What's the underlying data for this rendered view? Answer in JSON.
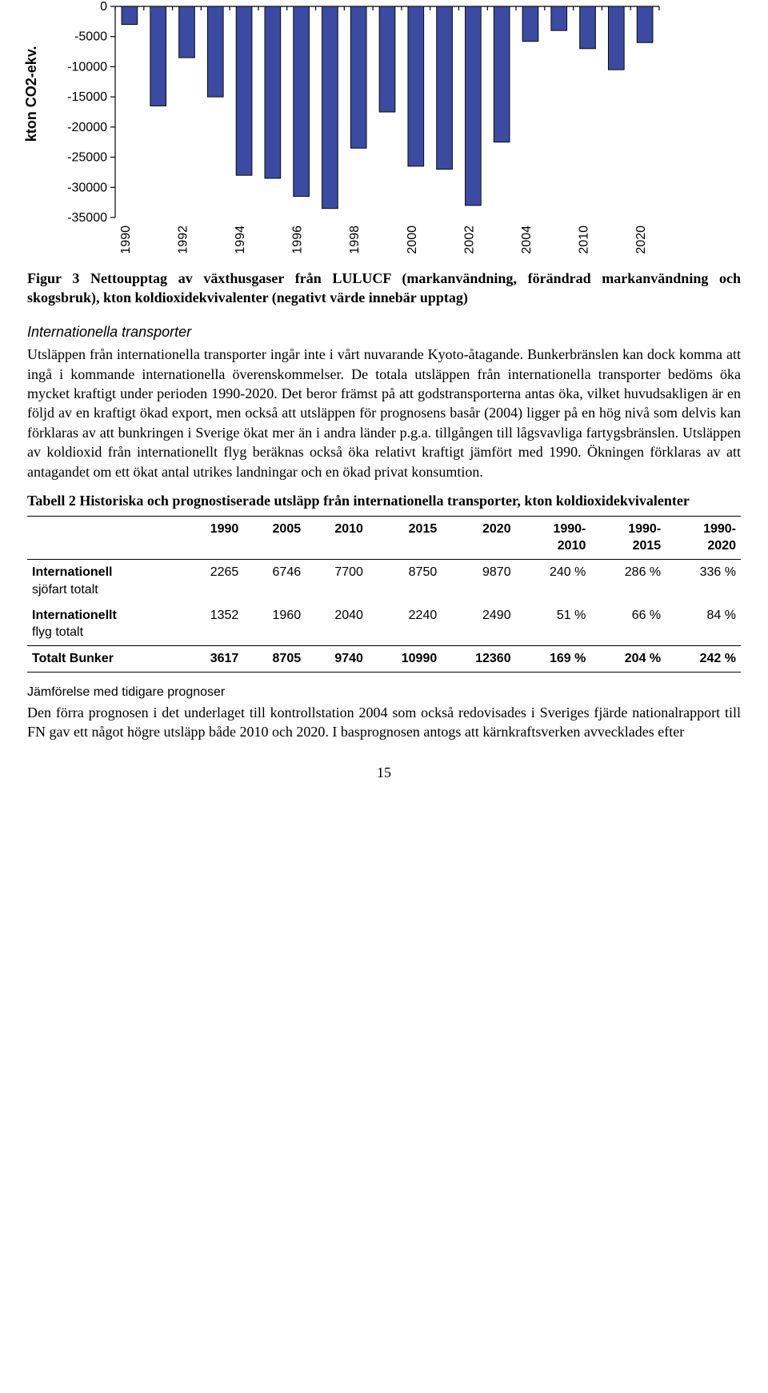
{
  "chart": {
    "type": "bar",
    "ylabel": "kton CO2-ekv.",
    "bar_color": "#3b4ba1",
    "bar_border": "#0b0b0b",
    "background_color": "#ffffff",
    "axis_color": "#000000",
    "yticks": [
      0,
      -5000,
      -10000,
      -15000,
      -20000,
      -25000,
      -30000,
      -35000
    ],
    "ylim_top": 0,
    "ylim_bottom": -35000,
    "label_fontsize": 16,
    "ylabel_fontsize": 18,
    "ylabel_fontweight": "bold",
    "x_labels_rotation": -90,
    "categories": [
      "1990",
      "",
      "1992",
      "",
      "1994",
      "",
      "1996",
      "",
      "1998",
      "",
      "2000",
      "",
      "2002",
      "",
      "2004",
      "",
      "2010",
      "",
      "2020"
    ],
    "values": [
      -3000,
      -16500,
      -8500,
      -15000,
      -28000,
      -28500,
      -31500,
      -33500,
      -23500,
      -17500,
      -26500,
      -27000,
      -33000,
      -22500,
      -5800,
      -4000,
      -7000,
      -10500,
      -6000
    ]
  },
  "figure_caption": "Figur 3 Nettoupptag av växthusgaser från LULUCF (markanvändning, förändrad markanvändning och skogsbruk), kton koldioxidekvivalenter (negativt värde innebär upptag)",
  "section_heading": "Internationella transporter",
  "body_paragraph_1": "Utsläppen från internationella transporter ingår inte i vårt nuvarande Kyoto-åtagande. Bunkerbränslen kan dock komma att ingå i kommande internationella överenskommelser. De totala utsläppen från internationella transporter bedöms öka mycket kraftigt under perioden 1990-2020. Det beror främst på att godstransporterna antas öka, vilket huvudsakligen är en följd av en kraftigt ökad export, men också att utsläppen för prognosens basår (2004) ligger på en hög nivå som delvis kan förklaras av att bunkringen i Sverige ökat mer än i andra länder p.g.a. tillgången till lågsvavliga fartygsbränslen. Utsläppen av koldioxid från internationellt flyg beräknas också öka relativt kraftigt jämfört med 1990. Ökningen förklaras av att antagandet om ett ökat antal utrikes landningar och en ökad privat konsumtion.",
  "table": {
    "caption": "Tabell 2 Historiska och prognostiserade utsläpp från internationella transporter, kton koldioxidekvivalenter",
    "columns": [
      "",
      "1990",
      "2005",
      "2010",
      "2015",
      "2020",
      "1990-2010",
      "1990-2015",
      "1990-2020"
    ],
    "column_head_break": {
      "6": "1990-<br>2010",
      "7": "1990-<br>2015",
      "8": "1990-<br>2020"
    },
    "rows": [
      {
        "label_main": "Internationell",
        "label_sub": "sjöfart totalt",
        "cells": [
          "2265",
          "6746",
          "7700",
          "8750",
          "9870",
          "240 %",
          "286 %",
          "336 %"
        ]
      },
      {
        "label_main": "Internationellt",
        "label_sub": "flyg totalt",
        "cells": [
          "1352",
          "1960",
          "2040",
          "2240",
          "2490",
          "51 %",
          "66 %",
          "84 %"
        ]
      },
      {
        "label_main": "Totalt Bunker",
        "label_sub": "",
        "cells": [
          "3617",
          "8705",
          "9740",
          "10990",
          "12360",
          "169 %",
          "204 %",
          "242 %"
        ]
      }
    ]
  },
  "subsection_heading": "Jämförelse med tidigare prognoser",
  "body_paragraph_2": "Den förra prognosen i det underlaget till kontrollstation 2004 som också redovisades i Sveriges fjärde nationalrapport till FN gav ett något högre utsläpp både 2010 och 2020. I basprognosen antogs att kärnkraftsverken avvecklades efter",
  "page_number": "15"
}
